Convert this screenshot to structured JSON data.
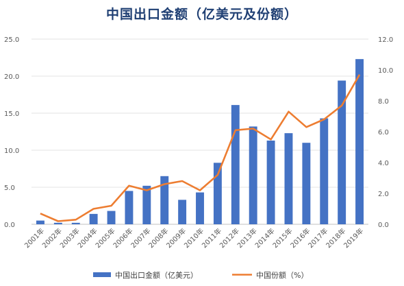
{
  "chart_data": {
    "type": "bar",
    "title": "中国出口金额（亿美元及份额）",
    "categories": [
      "2001年",
      "2002年",
      "2003年",
      "2004年",
      "2005年",
      "2006年",
      "2007年",
      "2008年",
      "2009年",
      "2010年",
      "2011年",
      "2012年",
      "2013年",
      "2014年",
      "2015年",
      "2016年",
      "2017年",
      "2018年",
      "2019年"
    ],
    "series": [
      {
        "name": "中国出口金额（亿美元）",
        "type": "bar",
        "axis": "left",
        "color": "#4472c4",
        "values": [
          0.5,
          0.2,
          0.2,
          1.4,
          1.8,
          4.5,
          5.2,
          6.5,
          3.3,
          4.3,
          8.3,
          16.1,
          13.2,
          11.3,
          12.3,
          11.0,
          14.3,
          19.4,
          22.3
        ]
      },
      {
        "name": "中国份额（%）",
        "type": "line",
        "axis": "right",
        "color": "#ed7d31",
        "values": [
          0.7,
          0.2,
          0.3,
          1.0,
          1.2,
          2.5,
          2.2,
          2.6,
          2.8,
          2.2,
          3.2,
          6.1,
          6.2,
          5.5,
          7.3,
          6.3,
          6.8,
          7.7,
          9.7
        ]
      }
    ],
    "y_left": {
      "ylim": [
        0,
        25
      ],
      "ticks": [
        "0.0",
        "5.0",
        "10.0",
        "15.0",
        "20.0",
        "25.0"
      ]
    },
    "y_right": {
      "ylim": [
        0,
        12
      ],
      "ticks": [
        "0.0",
        "2.0",
        "4.0",
        "6.0",
        "8.0",
        "10.0",
        "12.0"
      ]
    },
    "grid": true,
    "legend": "bottom"
  }
}
